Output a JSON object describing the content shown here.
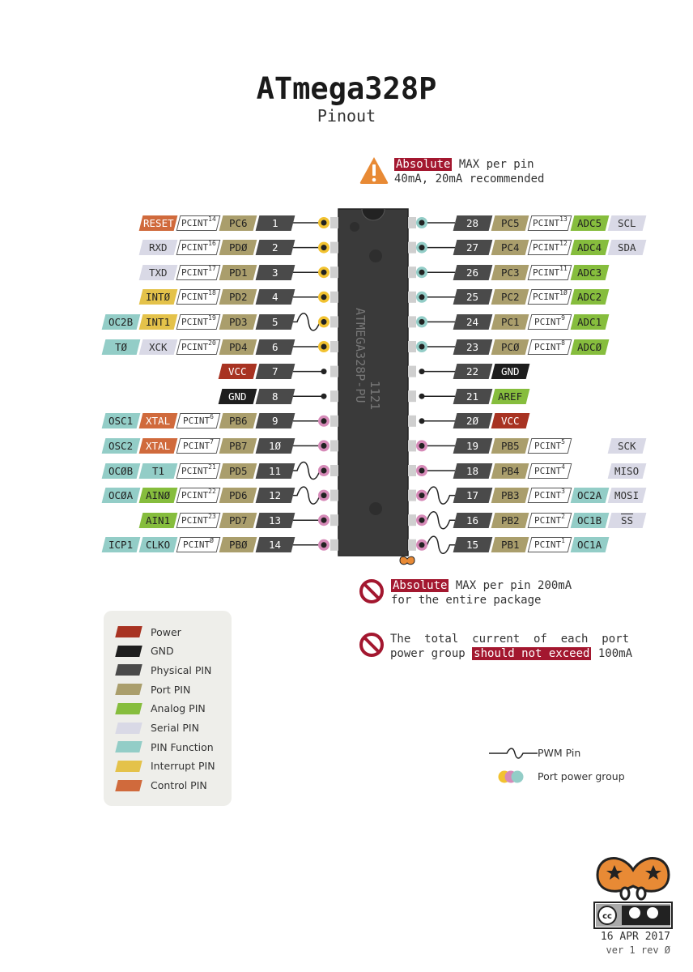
{
  "title": "ATmega328P",
  "subtitle": "Pinout",
  "warning_top": {
    "highlight": "Absolute",
    "line1_rest": " MAX per pin",
    "line2": "40mA, 20mA recommended"
  },
  "warning_package": {
    "highlight": "Absolute",
    "line1_rest": " MAX per pin 200mA",
    "line2": "for the entire package"
  },
  "warning_port": {
    "line1": "The  total  current  of  each  port",
    "line2_pre": "power group ",
    "highlight": "should not exceed",
    "line2_post": " 100mA"
  },
  "chip": {
    "text": "ATMEGA328P-PU",
    "code": "1121"
  },
  "colors": {
    "power": "#a83322",
    "gnd": "#1e1e1e",
    "phys": "#4a4a4a",
    "port": "#aa9e6c",
    "analog": "#86bd3d",
    "serial": "#d9d9e6",
    "func": "#93cdc7",
    "int": "#e4c24a",
    "ctrl": "#d06a3c",
    "group_yellow": "#f2c230",
    "group_teal": "#93cdc7",
    "group_pink": "#d68ab8"
  },
  "left_pins": [
    {
      "num": "1",
      "pwm": false,
      "group": "yellow",
      "labels": [
        {
          "k": "ctrl",
          "t": "RESET"
        },
        {
          "k": "pcint",
          "t": "PCINT",
          "s": "14"
        },
        {
          "k": "port",
          "t": "PC6"
        }
      ]
    },
    {
      "num": "2",
      "pwm": false,
      "group": "yellow",
      "labels": [
        {
          "k": "serial",
          "t": "RXD"
        },
        {
          "k": "pcint",
          "t": "PCINT",
          "s": "16"
        },
        {
          "k": "port",
          "t": "PDØ"
        }
      ]
    },
    {
      "num": "3",
      "pwm": false,
      "group": "yellow",
      "labels": [
        {
          "k": "serial",
          "t": "TXD"
        },
        {
          "k": "pcint",
          "t": "PCINT",
          "s": "17"
        },
        {
          "k": "port",
          "t": "PD1"
        }
      ]
    },
    {
      "num": "4",
      "pwm": false,
      "group": "yellow",
      "labels": [
        {
          "k": "int",
          "t": "INTØ"
        },
        {
          "k": "pcint",
          "t": "PCINT",
          "s": "18"
        },
        {
          "k": "port",
          "t": "PD2"
        }
      ]
    },
    {
      "num": "5",
      "pwm": true,
      "group": "yellow",
      "labels": [
        {
          "k": "func",
          "t": "OC2B"
        },
        {
          "k": "int",
          "t": "INT1"
        },
        {
          "k": "pcint",
          "t": "PCINT",
          "s": "19"
        },
        {
          "k": "port",
          "t": "PD3"
        }
      ]
    },
    {
      "num": "6",
      "pwm": false,
      "group": "yellow",
      "labels": [
        {
          "k": "func",
          "t": "TØ"
        },
        {
          "k": "serial",
          "t": "XCK"
        },
        {
          "k": "pcint",
          "t": "PCINT",
          "s": "20"
        },
        {
          "k": "port",
          "t": "PD4"
        }
      ]
    },
    {
      "num": "7",
      "pwm": false,
      "group": "none",
      "labels": [
        {
          "k": "power",
          "t": "VCC"
        }
      ]
    },
    {
      "num": "8",
      "pwm": false,
      "group": "none",
      "labels": [
        {
          "k": "gnd",
          "t": "GND"
        }
      ]
    },
    {
      "num": "9",
      "pwm": false,
      "group": "pink",
      "labels": [
        {
          "k": "func",
          "t": "OSC1"
        },
        {
          "k": "ctrl",
          "t": "XTAL"
        },
        {
          "k": "pcint",
          "t": "PCINT",
          "s": "6"
        },
        {
          "k": "port",
          "t": "PB6"
        }
      ]
    },
    {
      "num": "1Ø",
      "pwm": false,
      "group": "pink",
      "labels": [
        {
          "k": "func",
          "t": "OSC2"
        },
        {
          "k": "ctrl",
          "t": "XTAL"
        },
        {
          "k": "pcint",
          "t": "PCINT",
          "s": "7"
        },
        {
          "k": "port",
          "t": "PB7"
        }
      ]
    },
    {
      "num": "11",
      "pwm": true,
      "group": "pink",
      "labels": [
        {
          "k": "func",
          "t": "OCØB"
        },
        {
          "k": "func",
          "t": "T1"
        },
        {
          "k": "pcint",
          "t": "PCINT",
          "s": "21"
        },
        {
          "k": "port",
          "t": "PD5"
        }
      ]
    },
    {
      "num": "12",
      "pwm": true,
      "group": "pink",
      "labels": [
        {
          "k": "func",
          "t": "OCØA"
        },
        {
          "k": "analog",
          "t": "AINØ"
        },
        {
          "k": "pcint",
          "t": "PCINT",
          "s": "22"
        },
        {
          "k": "port",
          "t": "PD6"
        }
      ]
    },
    {
      "num": "13",
      "pwm": false,
      "group": "pink",
      "labels": [
        {
          "k": "analog",
          "t": "AIN1"
        },
        {
          "k": "pcint",
          "t": "PCINT",
          "s": "23"
        },
        {
          "k": "port",
          "t": "PD7"
        }
      ]
    },
    {
      "num": "14",
      "pwm": false,
      "group": "pink",
      "labels": [
        {
          "k": "func",
          "t": "ICP1"
        },
        {
          "k": "func",
          "t": "CLKO"
        },
        {
          "k": "pcint",
          "t": "PCINT",
          "s": "Ø"
        },
        {
          "k": "port",
          "t": "PBØ"
        }
      ]
    }
  ],
  "right_pins": [
    {
      "num": "28",
      "pwm": false,
      "group": "teal",
      "labels": [
        {
          "k": "port",
          "t": "PC5"
        },
        {
          "k": "pcint",
          "t": "PCINT",
          "s": "13"
        },
        {
          "k": "analog",
          "t": "ADC5"
        },
        {
          "k": "serial",
          "t": "SCL"
        }
      ]
    },
    {
      "num": "27",
      "pwm": false,
      "group": "teal",
      "labels": [
        {
          "k": "port",
          "t": "PC4"
        },
        {
          "k": "pcint",
          "t": "PCINT",
          "s": "12"
        },
        {
          "k": "analog",
          "t": "ADC4"
        },
        {
          "k": "serial",
          "t": "SDA"
        }
      ]
    },
    {
      "num": "26",
      "pwm": false,
      "group": "teal",
      "labels": [
        {
          "k": "port",
          "t": "PC3"
        },
        {
          "k": "pcint",
          "t": "PCINT",
          "s": "11"
        },
        {
          "k": "analog",
          "t": "ADC3"
        }
      ]
    },
    {
      "num": "25",
      "pwm": false,
      "group": "teal",
      "labels": [
        {
          "k": "port",
          "t": "PC2"
        },
        {
          "k": "pcint",
          "t": "PCINT",
          "s": "1Ø"
        },
        {
          "k": "analog",
          "t": "ADC2"
        }
      ]
    },
    {
      "num": "24",
      "pwm": false,
      "group": "teal",
      "labels": [
        {
          "k": "port",
          "t": "PC1"
        },
        {
          "k": "pcint",
          "t": "PCINT",
          "s": "9"
        },
        {
          "k": "analog",
          "t": "ADC1"
        }
      ]
    },
    {
      "num": "23",
      "pwm": false,
      "group": "teal",
      "labels": [
        {
          "k": "port",
          "t": "PCØ"
        },
        {
          "k": "pcint",
          "t": "PCINT",
          "s": "8"
        },
        {
          "k": "analog",
          "t": "ADCØ"
        }
      ]
    },
    {
      "num": "22",
      "pwm": false,
      "group": "none",
      "labels": [
        {
          "k": "gnd",
          "t": "GND"
        }
      ]
    },
    {
      "num": "21",
      "pwm": false,
      "group": "none",
      "labels": [
        {
          "k": "analog",
          "t": "AREF"
        }
      ]
    },
    {
      "num": "2Ø",
      "pwm": false,
      "group": "none",
      "labels": [
        {
          "k": "power",
          "t": "VCC"
        }
      ]
    },
    {
      "num": "19",
      "pwm": false,
      "group": "pink",
      "labels": [
        {
          "k": "port",
          "t": "PB5"
        },
        {
          "k": "pcint",
          "t": "PCINT",
          "s": "5"
        },
        {
          "k": "gap"
        },
        {
          "k": "serial",
          "t": "SCK"
        }
      ]
    },
    {
      "num": "18",
      "pwm": false,
      "group": "pink",
      "labels": [
        {
          "k": "port",
          "t": "PB4"
        },
        {
          "k": "pcint",
          "t": "PCINT",
          "s": "4"
        },
        {
          "k": "gap"
        },
        {
          "k": "serial",
          "t": "MISO"
        }
      ]
    },
    {
      "num": "17",
      "pwm": true,
      "group": "pink",
      "labels": [
        {
          "k": "port",
          "t": "PB3"
        },
        {
          "k": "pcint",
          "t": "PCINT",
          "s": "3"
        },
        {
          "k": "func",
          "t": "OC2A"
        },
        {
          "k": "serial",
          "t": "MOSI"
        }
      ]
    },
    {
      "num": "16",
      "pwm": true,
      "group": "pink",
      "labels": [
        {
          "k": "port",
          "t": "PB2"
        },
        {
          "k": "pcint",
          "t": "PCINT",
          "s": "2"
        },
        {
          "k": "func",
          "t": "OC1B"
        },
        {
          "k": "serial",
          "t": "SS",
          "over": true
        }
      ]
    },
    {
      "num": "15",
      "pwm": true,
      "group": "pink",
      "labels": [
        {
          "k": "port",
          "t": "PB1"
        },
        {
          "k": "pcint",
          "t": "PCINT",
          "s": "1"
        },
        {
          "k": "func",
          "t": "OC1A"
        }
      ]
    }
  ],
  "legend": [
    {
      "k": "power",
      "label": "Power"
    },
    {
      "k": "gnd",
      "label": "GND"
    },
    {
      "k": "phys",
      "label": "Physical PIN"
    },
    {
      "k": "port",
      "label": "Port PIN"
    },
    {
      "k": "analog",
      "label": "Analog PIN"
    },
    {
      "k": "serial",
      "label": "Serial PIN"
    },
    {
      "k": "func",
      "label": "PIN Function"
    },
    {
      "k": "int",
      "label": "Interrupt PIN"
    },
    {
      "k": "ctrl",
      "label": "Control PIN"
    }
  ],
  "pwm_legend": "PWM Pin",
  "group_legend": "Port power group",
  "date": "16 APR 2017",
  "version": "ver 1 rev Ø",
  "license_icon": "cc-by-sa-icon",
  "logo_icon": "mascot-logo-icon"
}
